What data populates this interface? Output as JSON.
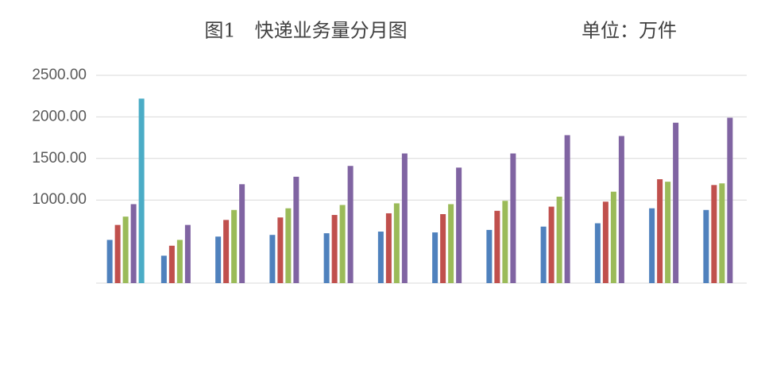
{
  "chart_data": {
    "type": "bar",
    "title": "图1　快递业务量分月图",
    "unit": "单位：万件",
    "categories": [
      null,
      null,
      null,
      null,
      null,
      null,
      null,
      null,
      null,
      null,
      null,
      null
    ],
    "series": [
      {
        "color": "#4f81bd",
        "values": [
          520,
          330,
          560,
          580,
          600,
          620,
          610,
          640,
          680,
          720,
          900,
          880
        ]
      },
      {
        "color": "#c0504d",
        "values": [
          700,
          450,
          760,
          790,
          820,
          840,
          830,
          870,
          920,
          980,
          1250,
          1180
        ]
      },
      {
        "color": "#9bbb59",
        "values": [
          800,
          520,
          880,
          900,
          940,
          960,
          950,
          990,
          1040,
          1100,
          1220,
          1200
        ]
      },
      {
        "color": "#8064a2",
        "values": [
          950,
          700,
          1190,
          1280,
          1410,
          1560,
          1390,
          1560,
          1780,
          1770,
          1930,
          1990
        ]
      },
      {
        "color": "#4bacc6",
        "values": [
          2220,
          null,
          null,
          null,
          null,
          null,
          null,
          null,
          null,
          null,
          null,
          null
        ]
      }
    ],
    "ylim": [
      0,
      2500
    ],
    "yticks": [
      {
        "value": 1000,
        "label": "1000.00"
      },
      {
        "value": 1500,
        "label": "1500.00"
      },
      {
        "value": 2000,
        "label": "2000.00"
      },
      {
        "value": 2500,
        "label": "2500.00"
      }
    ],
    "grid": true
  }
}
